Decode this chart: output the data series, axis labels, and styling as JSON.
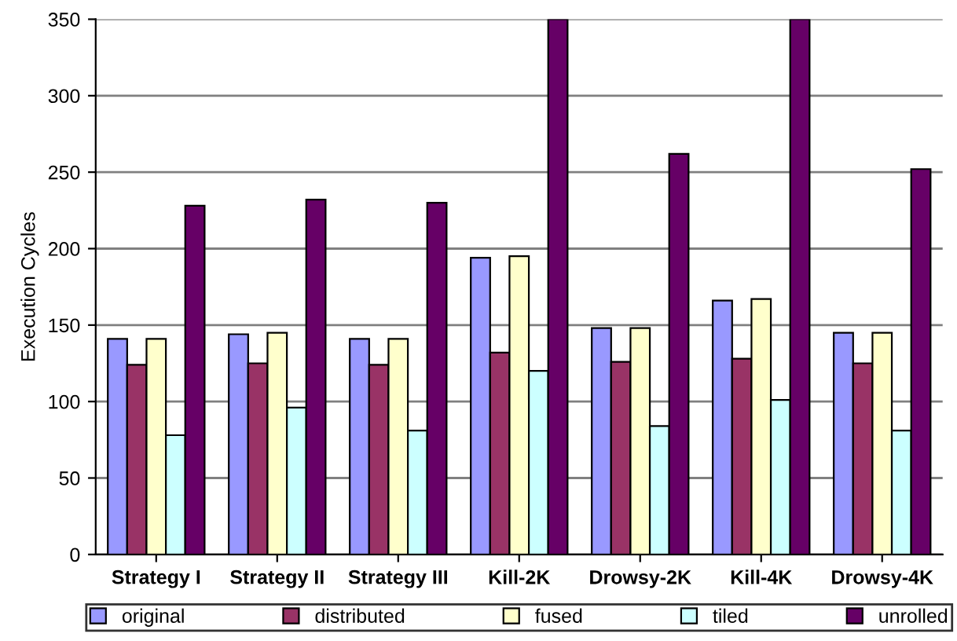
{
  "chart_data": {
    "type": "bar",
    "ylabel": "Execution Cycles",
    "categories": [
      "Strategy I",
      "Strategy II",
      "Strategy III",
      "Kill-2K",
      "Drowsy-2K",
      "Kill-4K",
      "Drowsy-4K"
    ],
    "series": [
      {
        "name": "original",
        "color": "#9999ff",
        "values": [
          141,
          144,
          141,
          194,
          148,
          166,
          145
        ]
      },
      {
        "name": "distributed",
        "color": "#993366",
        "values": [
          124,
          125,
          124,
          132,
          126,
          128,
          125
        ]
      },
      {
        "name": "fused",
        "color": "#ffffcc",
        "values": [
          141,
          145,
          141,
          195,
          148,
          167,
          145
        ]
      },
      {
        "name": "tiled",
        "color": "#ccffff",
        "values": [
          78,
          96,
          81,
          120,
          84,
          101,
          81
        ]
      },
      {
        "name": "unrolled",
        "color": "#660066",
        "values": [
          228,
          232,
          230,
          350,
          262,
          350,
          252
        ]
      }
    ],
    "ylim": [
      0,
      350
    ],
    "yticks": [
      0,
      50,
      100,
      150,
      200,
      250,
      300,
      350
    ],
    "grid": "y",
    "legend": "bottom"
  }
}
